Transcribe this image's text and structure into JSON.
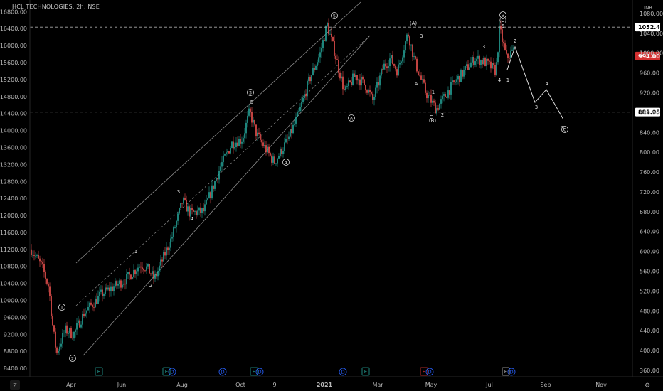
{
  "chart_title": "HCL TECHNOLOGIES, 2h, NSE",
  "bottom_left_button": "Z",
  "bottom_right_button": "⚙",
  "colors": {
    "background": "#000000",
    "up": "#26a69a",
    "down": "#ef5350",
    "level_line": "#a9a9a9",
    "channel": "#8c8c8c",
    "projection": "#dddddd",
    "label_current": "#d32f2f",
    "event_earnings": "#26a69a",
    "event_dividend": "#2962ff",
    "event_split": "#e53935"
  },
  "chart_data": {
    "type": "candlestick",
    "title": "HCL TECHNOLOGIES, 2h, NSE",
    "left_axis": {
      "ticks": [
        "16800.00",
        "16400.00",
        "16000.00",
        "15600.00",
        "15200.00",
        "14800.00",
        "14400.00",
        "14000.00",
        "13600.00",
        "13200.00",
        "12800.00",
        "12400.00",
        "12000.00",
        "11600.00",
        "11200.00",
        "10800.00",
        "10400.00",
        "10000.00",
        "9600.00",
        "9200.00",
        "8800.00",
        "8400.00"
      ],
      "range": [
        8200,
        16990
      ]
    },
    "right_axis": {
      "currency": "INR",
      "ticks": [
        "1080.00",
        "1040.00",
        "1000.00",
        "960.00",
        "920.00",
        "880.00",
        "840.00",
        "800.00",
        "760.00",
        "720.00",
        "680.00",
        "640.00",
        "600.00",
        "560.00",
        "520.00",
        "480.00",
        "440.00",
        "400.00",
        "360.00"
      ],
      "range": [
        347,
        1100
      ]
    },
    "x_axis": {
      "ticks": [
        "Apr",
        "Jun",
        "Aug",
        "Oct",
        "9",
        "2021",
        "Mar",
        "May",
        "Jul",
        "Sep",
        "Nov"
      ]
    },
    "levels": [
      {
        "value": 1052.4,
        "label": "1052.40",
        "style": "dashed"
      },
      {
        "value": 881.05,
        "label": "881.05",
        "style": "dashed"
      }
    ],
    "current_price": {
      "value": 994.0,
      "label": "994.00"
    },
    "series_anchors": [
      {
        "x": 0,
        "y": 11200
      },
      {
        "x": 15,
        "y": 10800
      },
      {
        "x": 25,
        "y": 10300
      },
      {
        "x": 31,
        "y": 9300
      },
      {
        "x": 36,
        "y": 8750
      },
      {
        "x": 48,
        "y": 9300
      },
      {
        "x": 60,
        "y": 9200
      },
      {
        "x": 75,
        "y": 9700
      },
      {
        "x": 100,
        "y": 10150
      },
      {
        "x": 135,
        "y": 10500
      },
      {
        "x": 155,
        "y": 10850
      },
      {
        "x": 165,
        "y": 10750
      },
      {
        "x": 175,
        "y": 10500
      },
      {
        "x": 200,
        "y": 11500
      },
      {
        "x": 215,
        "y": 12350
      },
      {
        "x": 225,
        "y": 12050
      },
      {
        "x": 245,
        "y": 12100
      },
      {
        "x": 270,
        "y": 13200
      },
      {
        "x": 285,
        "y": 13700
      },
      {
        "x": 300,
        "y": 13800
      },
      {
        "x": 310,
        "y": 14450
      },
      {
        "x": 320,
        "y": 13900
      },
      {
        "x": 345,
        "y": 13250
      },
      {
        "x": 365,
        "y": 13800
      },
      {
        "x": 380,
        "y": 14400
      },
      {
        "x": 395,
        "y": 15200
      },
      {
        "x": 410,
        "y": 15800
      },
      {
        "x": 420,
        "y": 16500
      },
      {
        "x": 430,
        "y": 15900
      },
      {
        "x": 445,
        "y": 14900
      },
      {
        "x": 460,
        "y": 15300
      },
      {
        "x": 475,
        "y": 15050
      },
      {
        "x": 485,
        "y": 14700
      },
      {
        "x": 500,
        "y": 15500
      },
      {
        "x": 510,
        "y": 15700
      },
      {
        "x": 520,
        "y": 15400
      },
      {
        "x": 535,
        "y": 16300
      },
      {
        "x": 545,
        "y": 15600
      },
      {
        "x": 560,
        "y": 14900
      },
      {
        "x": 575,
        "y": 14500
      },
      {
        "x": 595,
        "y": 15000
      },
      {
        "x": 610,
        "y": 15300
      },
      {
        "x": 630,
        "y": 15700
      },
      {
        "x": 645,
        "y": 15600
      },
      {
        "x": 660,
        "y": 15400
      },
      {
        "x": 665,
        "y": 16400
      },
      {
        "x": 675,
        "y": 15700
      },
      {
        "x": 685,
        "y": 15900
      }
    ],
    "wave_labels_circled": [
      "1",
      "2",
      "3",
      "4",
      "5",
      "A",
      "B",
      "C",
      "D"
    ],
    "wave_labels_plain": [
      "1",
      "2",
      "3",
      "4",
      "5",
      "A",
      "B",
      "C"
    ],
    "wave_labels_paren": [
      "(A)",
      "(B)",
      "(C)"
    ],
    "events": [
      "E",
      "D",
      "S"
    ]
  }
}
